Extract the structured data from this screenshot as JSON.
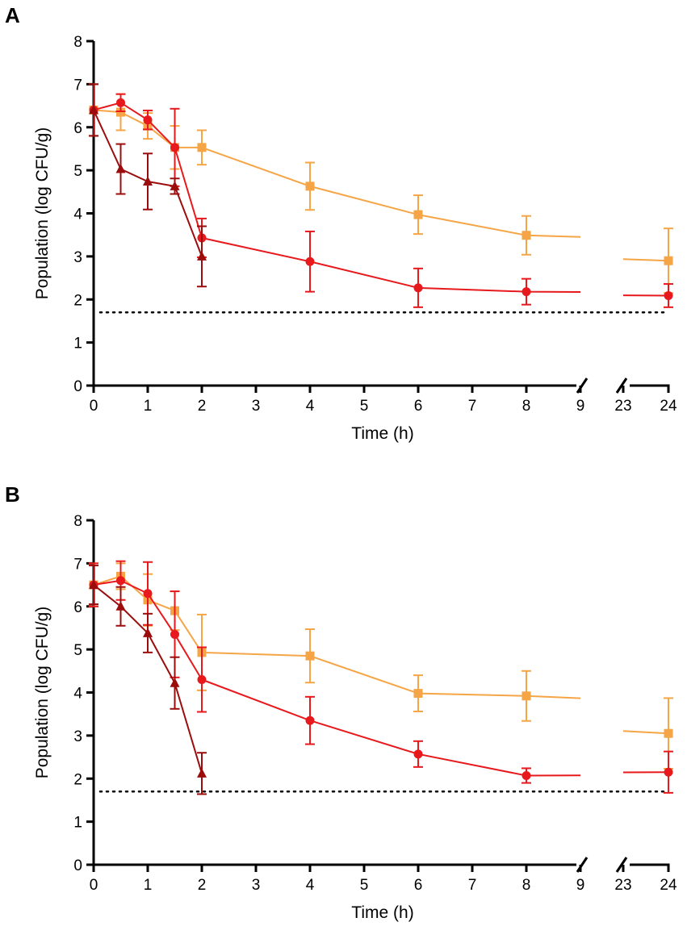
{
  "chart_data": [
    {
      "type": "line",
      "panel_label": "A",
      "xlabel": "Time (h)",
      "ylabel": "Population (log CFU/g)",
      "ylim": [
        0,
        8
      ],
      "yticks": [
        "0",
        "1",
        "2",
        "3",
        "4",
        "5",
        "6",
        "7",
        "8"
      ],
      "xticks": [
        "0",
        "1",
        "2",
        "3",
        "4",
        "5",
        "6",
        "7",
        "8",
        "9",
        "23",
        "24"
      ],
      "x_break": [
        9,
        23
      ],
      "detection_limit": 1.7,
      "colors": {
        "dark": "#9b0d0d",
        "red": "#e8191d",
        "orange": "#f5a545"
      },
      "series": [
        {
          "name": "dark red triangles",
          "marker": "triangle",
          "color": "#9b0d0d",
          "x": [
            0,
            0.5,
            1,
            1.5,
            2
          ],
          "y": [
            6.4,
            5.03,
            4.74,
            4.63,
            3.0
          ],
          "err": [
            0.6,
            0.58,
            0.65,
            0.18,
            0.7
          ]
        },
        {
          "name": "red circles",
          "marker": "circle",
          "color": "#e8191d",
          "x": [
            0,
            0.5,
            1,
            1.5,
            2,
            4,
            6,
            8,
            24
          ],
          "y": [
            6.4,
            6.57,
            6.17,
            5.53,
            3.43,
            2.88,
            2.27,
            2.18,
            2.09
          ],
          "err": [
            0.6,
            0.2,
            0.22,
            0.9,
            0.45,
            0.7,
            0.45,
            0.3,
            0.27
          ]
        },
        {
          "name": "orange squares",
          "marker": "square",
          "color": "#f5a545",
          "x": [
            0,
            0.5,
            1,
            1.5,
            2,
            4,
            6,
            8,
            24
          ],
          "y": [
            6.4,
            6.35,
            6.03,
            5.53,
            5.53,
            4.63,
            3.97,
            3.49,
            2.9
          ],
          "err": [
            0.6,
            0.42,
            0.3,
            0.5,
            0.4,
            0.55,
            0.45,
            0.45,
            0.75
          ]
        }
      ]
    },
    {
      "type": "line",
      "panel_label": "B",
      "xlabel": "Time (h)",
      "ylabel": "Population (log CFU/g)",
      "ylim": [
        0,
        8
      ],
      "yticks": [
        "0",
        "1",
        "2",
        "3",
        "4",
        "5",
        "6",
        "7",
        "8"
      ],
      "xticks": [
        "0",
        "1",
        "2",
        "3",
        "4",
        "5",
        "6",
        "7",
        "8",
        "9",
        "23",
        "24"
      ],
      "x_break": [
        9,
        23
      ],
      "detection_limit": 1.7,
      "colors": {
        "dark": "#9b0d0d",
        "red": "#e8191d",
        "orange": "#f5a545"
      },
      "series": [
        {
          "name": "dark red triangles",
          "marker": "triangle",
          "color": "#9b0d0d",
          "x": [
            0,
            0.5,
            1,
            1.5,
            2
          ],
          "y": [
            6.5,
            6.0,
            5.38,
            4.22,
            2.12
          ],
          "err": [
            0.45,
            0.45,
            0.45,
            0.6,
            0.48
          ]
        },
        {
          "name": "red circles",
          "marker": "circle",
          "color": "#e8191d",
          "x": [
            0,
            0.5,
            1,
            1.5,
            2,
            4,
            6,
            8,
            24
          ],
          "y": [
            6.5,
            6.6,
            6.3,
            5.35,
            4.3,
            3.35,
            2.57,
            2.07,
            2.15
          ],
          "err": [
            0.5,
            0.45,
            0.73,
            1.0,
            0.75,
            0.55,
            0.3,
            0.17,
            0.48
          ]
        },
        {
          "name": "orange squares",
          "marker": "square",
          "color": "#f5a545",
          "x": [
            0,
            0.5,
            1,
            1.5,
            2,
            4,
            6,
            8,
            24
          ],
          "y": [
            6.5,
            6.7,
            6.15,
            5.9,
            4.93,
            4.85,
            3.98,
            3.92,
            3.05
          ],
          "err": [
            0.5,
            0.3,
            0.6,
            0.45,
            0.88,
            0.62,
            0.42,
            0.58,
            0.82
          ]
        }
      ]
    }
  ]
}
